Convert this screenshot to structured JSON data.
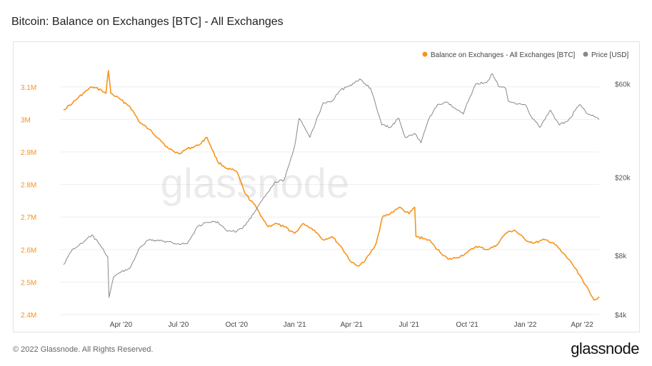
{
  "header": {
    "title": "Bitcoin: Balance on Exchanges [BTC] - All Exchanges"
  },
  "footer": {
    "copyright": "© 2022 Glassnode. All Rights Reserved.",
    "logo_text": "glassnode"
  },
  "watermark": "glassnode",
  "colors": {
    "balance": "#f7931a",
    "price": "#888888",
    "axis_left": "#f7931a",
    "axis_right": "#555555",
    "grid": "#eeeeee"
  },
  "chart_data": {
    "type": "line",
    "legend_position": "top-right",
    "grid": true,
    "x_range": [
      "2020-01-01",
      "2022-04-28"
    ],
    "x_ticks": [
      {
        "date": "2020-04-01",
        "label": "Apr '20"
      },
      {
        "date": "2020-07-01",
        "label": "Jul '20"
      },
      {
        "date": "2020-10-01",
        "label": "Oct '20"
      },
      {
        "date": "2021-01-01",
        "label": "Jan '21"
      },
      {
        "date": "2021-04-01",
        "label": "Apr '21"
      },
      {
        "date": "2021-07-01",
        "label": "Jul '21"
      },
      {
        "date": "2021-10-01",
        "label": "Oct '21"
      },
      {
        "date": "2022-01-01",
        "label": "Jan '22"
      },
      {
        "date": "2022-04-01",
        "label": "Apr '22"
      }
    ],
    "y_left": {
      "range": [
        2400000,
        3150000
      ],
      "ticks": [
        {
          "value": 2400000,
          "label": "2.4M"
        },
        {
          "value": 2500000,
          "label": "2.5M"
        },
        {
          "value": 2600000,
          "label": "2.6M"
        },
        {
          "value": 2700000,
          "label": "2.7M"
        },
        {
          "value": 2800000,
          "label": "2.8M"
        },
        {
          "value": 2900000,
          "label": "2.9M"
        },
        {
          "value": 3000000,
          "label": "3M"
        },
        {
          "value": 3100000,
          "label": "3.1M"
        }
      ]
    },
    "y_right": {
      "scale": "log",
      "range": [
        4000,
        70000
      ],
      "ticks": [
        {
          "value": 4000,
          "label": "$4k"
        },
        {
          "value": 8000,
          "label": "$8k"
        },
        {
          "value": 20000,
          "label": "$20k"
        },
        {
          "value": 60000,
          "label": "$60k"
        }
      ]
    },
    "series": [
      {
        "name": "Balance on Exchanges - All Exchanges [BTC]",
        "axis": "left",
        "points": [
          [
            "2020-01-01",
            3030000
          ],
          [
            "2020-01-15",
            3050000
          ],
          [
            "2020-02-01",
            3080000
          ],
          [
            "2020-02-15",
            3100000
          ],
          [
            "2020-03-01",
            3090000
          ],
          [
            "2020-03-08",
            3080000
          ],
          [
            "2020-03-12",
            3150000
          ],
          [
            "2020-03-16",
            3080000
          ],
          [
            "2020-04-01",
            3060000
          ],
          [
            "2020-04-15",
            3040000
          ],
          [
            "2020-05-01",
            2990000
          ],
          [
            "2020-05-15",
            2970000
          ],
          [
            "2020-06-01",
            2940000
          ],
          [
            "2020-06-15",
            2910000
          ],
          [
            "2020-07-01",
            2895000
          ],
          [
            "2020-07-15",
            2910000
          ],
          [
            "2020-08-01",
            2920000
          ],
          [
            "2020-08-15",
            2945000
          ],
          [
            "2020-09-01",
            2870000
          ],
          [
            "2020-09-15",
            2850000
          ],
          [
            "2020-10-01",
            2840000
          ],
          [
            "2020-10-15",
            2770000
          ],
          [
            "2020-11-01",
            2730000
          ],
          [
            "2020-11-10",
            2700000
          ],
          [
            "2020-11-20",
            2670000
          ],
          [
            "2020-12-01",
            2680000
          ],
          [
            "2020-12-15",
            2670000
          ],
          [
            "2021-01-01",
            2650000
          ],
          [
            "2021-01-15",
            2680000
          ],
          [
            "2021-02-01",
            2660000
          ],
          [
            "2021-02-15",
            2630000
          ],
          [
            "2021-03-01",
            2640000
          ],
          [
            "2021-03-15",
            2610000
          ],
          [
            "2021-04-01",
            2560000
          ],
          [
            "2021-04-10",
            2550000
          ],
          [
            "2021-04-20",
            2560000
          ],
          [
            "2021-05-01",
            2590000
          ],
          [
            "2021-05-10",
            2620000
          ],
          [
            "2021-05-20",
            2700000
          ],
          [
            "2021-06-01",
            2710000
          ],
          [
            "2021-06-15",
            2730000
          ],
          [
            "2021-07-01",
            2710000
          ],
          [
            "2021-07-10",
            2730000
          ],
          [
            "2021-07-12",
            2640000
          ],
          [
            "2021-08-01",
            2630000
          ],
          [
            "2021-08-15",
            2600000
          ],
          [
            "2021-09-01",
            2570000
          ],
          [
            "2021-09-15",
            2575000
          ],
          [
            "2021-10-01",
            2590000
          ],
          [
            "2021-10-15",
            2610000
          ],
          [
            "2021-11-01",
            2600000
          ],
          [
            "2021-11-15",
            2610000
          ],
          [
            "2021-12-01",
            2650000
          ],
          [
            "2021-12-15",
            2660000
          ],
          [
            "2022-01-01",
            2630000
          ],
          [
            "2022-01-15",
            2620000
          ],
          [
            "2022-02-01",
            2630000
          ],
          [
            "2022-02-15",
            2620000
          ],
          [
            "2022-03-01",
            2590000
          ],
          [
            "2022-03-15",
            2560000
          ],
          [
            "2022-04-01",
            2510000
          ],
          [
            "2022-04-15",
            2460000
          ],
          [
            "2022-04-20",
            2445000
          ],
          [
            "2022-04-28",
            2455000
          ]
        ]
      },
      {
        "name": "Price [USD]",
        "axis": "right",
        "points": [
          [
            "2020-01-01",
            7200
          ],
          [
            "2020-01-15",
            8600
          ],
          [
            "2020-02-01",
            9300
          ],
          [
            "2020-02-15",
            10200
          ],
          [
            "2020-03-01",
            8800
          ],
          [
            "2020-03-11",
            7900
          ],
          [
            "2020-03-13",
            4900
          ],
          [
            "2020-03-20",
            6200
          ],
          [
            "2020-04-01",
            6600
          ],
          [
            "2020-04-15",
            6900
          ],
          [
            "2020-05-01",
            8800
          ],
          [
            "2020-05-15",
            9600
          ],
          [
            "2020-06-01",
            9500
          ],
          [
            "2020-06-15",
            9400
          ],
          [
            "2020-07-01",
            9200
          ],
          [
            "2020-07-15",
            9200
          ],
          [
            "2020-08-01",
            11300
          ],
          [
            "2020-08-15",
            11800
          ],
          [
            "2020-09-01",
            11900
          ],
          [
            "2020-09-15",
            10700
          ],
          [
            "2020-10-01",
            10600
          ],
          [
            "2020-10-15",
            11400
          ],
          [
            "2020-11-01",
            13700
          ],
          [
            "2020-11-15",
            16000
          ],
          [
            "2020-12-01",
            19000
          ],
          [
            "2020-12-15",
            19400
          ],
          [
            "2021-01-01",
            29000
          ],
          [
            "2021-01-08",
            40000
          ],
          [
            "2021-01-25",
            32000
          ],
          [
            "2021-02-15",
            48000
          ],
          [
            "2021-03-01",
            49000
          ],
          [
            "2021-03-15",
            56000
          ],
          [
            "2021-04-01",
            58800
          ],
          [
            "2021-04-14",
            63500
          ],
          [
            "2021-05-01",
            57000
          ],
          [
            "2021-05-19",
            37000
          ],
          [
            "2021-06-01",
            36000
          ],
          [
            "2021-06-15",
            40000
          ],
          [
            "2021-06-25",
            32000
          ],
          [
            "2021-07-10",
            33500
          ],
          [
            "2021-07-20",
            30000
          ],
          [
            "2021-08-01",
            39500
          ],
          [
            "2021-08-15",
            47000
          ],
          [
            "2021-09-01",
            48000
          ],
          [
            "2021-09-07",
            46000
          ],
          [
            "2021-09-25",
            42000
          ],
          [
            "2021-10-01",
            48000
          ],
          [
            "2021-10-15",
            60000
          ],
          [
            "2021-11-01",
            61000
          ],
          [
            "2021-11-10",
            67500
          ],
          [
            "2021-11-20",
            58000
          ],
          [
            "2021-12-01",
            57000
          ],
          [
            "2021-12-05",
            49000
          ],
          [
            "2021-12-15",
            48000
          ],
          [
            "2022-01-01",
            47000
          ],
          [
            "2022-01-10",
            41000
          ],
          [
            "2022-01-24",
            36000
          ],
          [
            "2022-02-10",
            44000
          ],
          [
            "2022-02-24",
            37000
          ],
          [
            "2022-03-10",
            39000
          ],
          [
            "2022-03-28",
            47000
          ],
          [
            "2022-04-10",
            42000
          ],
          [
            "2022-04-20",
            41000
          ],
          [
            "2022-04-28",
            39500
          ]
        ]
      }
    ]
  }
}
